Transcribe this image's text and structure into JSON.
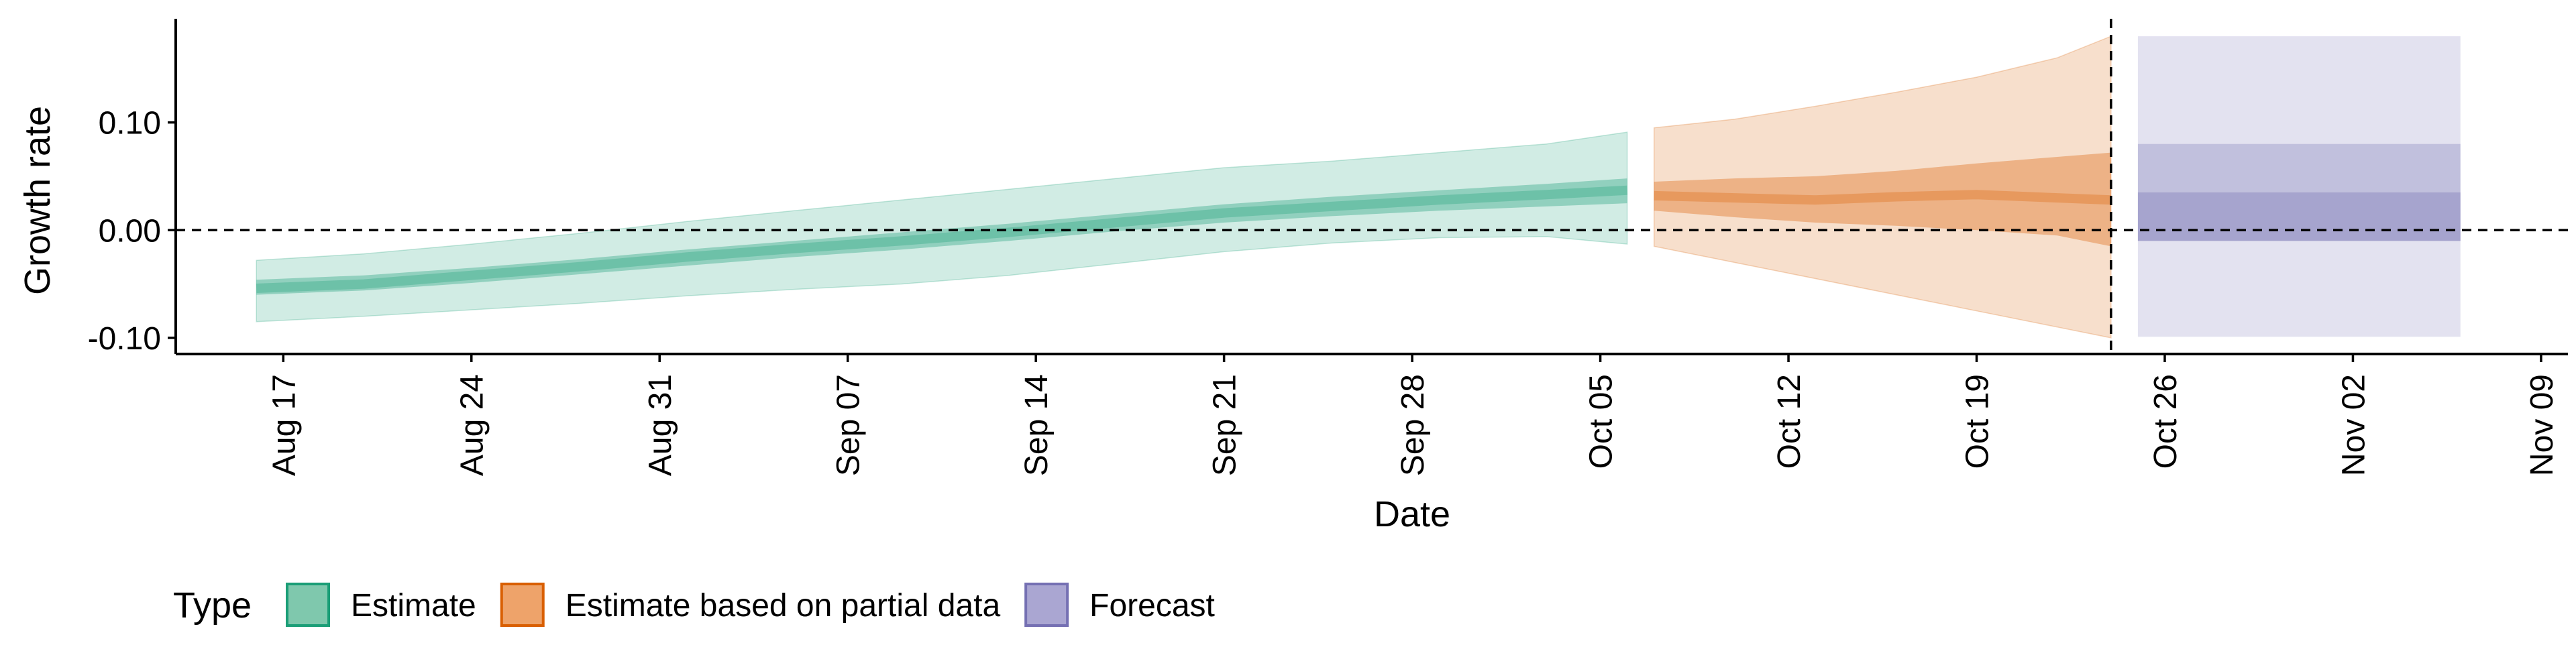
{
  "chart_data": {
    "type": "area",
    "xlabel": "Date",
    "ylabel": "Growth rate",
    "x_axis_type": "date",
    "xlim": [
      "2021-08-13",
      "2021-11-10"
    ],
    "ylim": [
      -0.115,
      0.195
    ],
    "y_ticks": [
      {
        "value": -0.1,
        "label": "-0.10"
      },
      {
        "value": 0.0,
        "label": "0.00"
      },
      {
        "value": 0.1,
        "label": "0.10"
      }
    ],
    "x_ticks": [
      {
        "date": "2021-08-17",
        "label": "Aug 17"
      },
      {
        "date": "2021-08-24",
        "label": "Aug 24"
      },
      {
        "date": "2021-08-31",
        "label": "Aug 31"
      },
      {
        "date": "2021-09-07",
        "label": "Sep 07"
      },
      {
        "date": "2021-09-14",
        "label": "Sep 14"
      },
      {
        "date": "2021-09-21",
        "label": "Sep 21"
      },
      {
        "date": "2021-09-28",
        "label": "Sep 28"
      },
      {
        "date": "2021-10-05",
        "label": "Oct 05"
      },
      {
        "date": "2021-10-12",
        "label": "Oct 12"
      },
      {
        "date": "2021-10-19",
        "label": "Oct 19"
      },
      {
        "date": "2021-10-26",
        "label": "Oct 26"
      },
      {
        "date": "2021-11-02",
        "label": "Nov 02"
      },
      {
        "date": "2021-11-09",
        "label": "Nov 09"
      }
    ],
    "reference_lines": {
      "horizontal_y": 0.0,
      "vertical_date": "2021-10-24"
    },
    "grid": false,
    "legend": {
      "title": "Type",
      "position": "bottom",
      "entries": [
        {
          "label": "Estimate",
          "fill": "#7fc8ad",
          "stroke": "#1b9e77"
        },
        {
          "label": "Estimate based on partial data",
          "fill": "#eea36a",
          "stroke": "#d95f02"
        },
        {
          "label": "Forecast",
          "fill": "#aaa6d2",
          "stroke": "#7570b3"
        }
      ]
    },
    "series": [
      {
        "type_label": "Estimate",
        "color": "#1b9e77",
        "x": [
          "2021-08-16",
          "2021-08-20",
          "2021-08-24",
          "2021-08-28",
          "2021-09-01",
          "2021-09-05",
          "2021-09-09",
          "2021-09-13",
          "2021-09-17",
          "2021-09-21",
          "2021-09-25",
          "2021-09-29",
          "2021-10-03",
          "2021-10-06"
        ],
        "median": [
          -0.054,
          -0.05,
          -0.042,
          -0.034,
          -0.025,
          -0.017,
          -0.01,
          -0.002,
          0.007,
          0.016,
          0.022,
          0.028,
          0.033,
          0.037
        ],
        "lower_50": [
          -0.06,
          -0.056,
          -0.049,
          -0.041,
          -0.033,
          -0.025,
          -0.018,
          -0.01,
          -0.001,
          0.007,
          0.013,
          0.018,
          0.022,
          0.025
        ],
        "upper_50": [
          -0.046,
          -0.042,
          -0.035,
          -0.027,
          -0.018,
          -0.01,
          -0.002,
          0.006,
          0.015,
          0.024,
          0.031,
          0.037,
          0.043,
          0.048
        ],
        "lower_90": [
          -0.085,
          -0.08,
          -0.074,
          -0.068,
          -0.061,
          -0.055,
          -0.05,
          -0.042,
          -0.031,
          -0.02,
          -0.012,
          -0.007,
          -0.006,
          -0.013
        ],
        "upper_90": [
          -0.028,
          -0.022,
          -0.013,
          -0.003,
          0.008,
          0.018,
          0.028,
          0.038,
          0.048,
          0.058,
          0.064,
          0.072,
          0.08,
          0.091
        ]
      },
      {
        "type_label": "Estimate based on partial data",
        "color": "#d95f02",
        "x": [
          "2021-10-07",
          "2021-10-10",
          "2021-10-13",
          "2021-10-16",
          "2021-10-19",
          "2021-10-22",
          "2021-10-24"
        ],
        "median": [
          0.032,
          0.03,
          0.028,
          0.031,
          0.033,
          0.03,
          0.028
        ],
        "lower_50": [
          0.018,
          0.012,
          0.007,
          0.004,
          0.0,
          -0.005,
          -0.015
        ],
        "upper_50": [
          0.045,
          0.048,
          0.05,
          0.055,
          0.062,
          0.068,
          0.072
        ],
        "lower_90": [
          -0.015,
          -0.03,
          -0.045,
          -0.06,
          -0.075,
          -0.09,
          -0.1
        ],
        "upper_90": [
          0.095,
          0.103,
          0.115,
          0.128,
          0.142,
          0.16,
          0.18
        ]
      },
      {
        "type_label": "Forecast",
        "color": "#7570b3",
        "x": [
          "2021-10-25",
          "2021-11-06"
        ],
        "median": [
          0.032,
          0.032
        ],
        "lower_50": [
          -0.01,
          -0.01
        ],
        "upper_50": [
          0.035,
          0.035
        ],
        "lower_90": [
          -0.099,
          -0.099
        ],
        "upper_90": [
          0.18,
          0.18
        ],
        "mid_upper": [
          0.08,
          0.08
        ]
      }
    ]
  }
}
